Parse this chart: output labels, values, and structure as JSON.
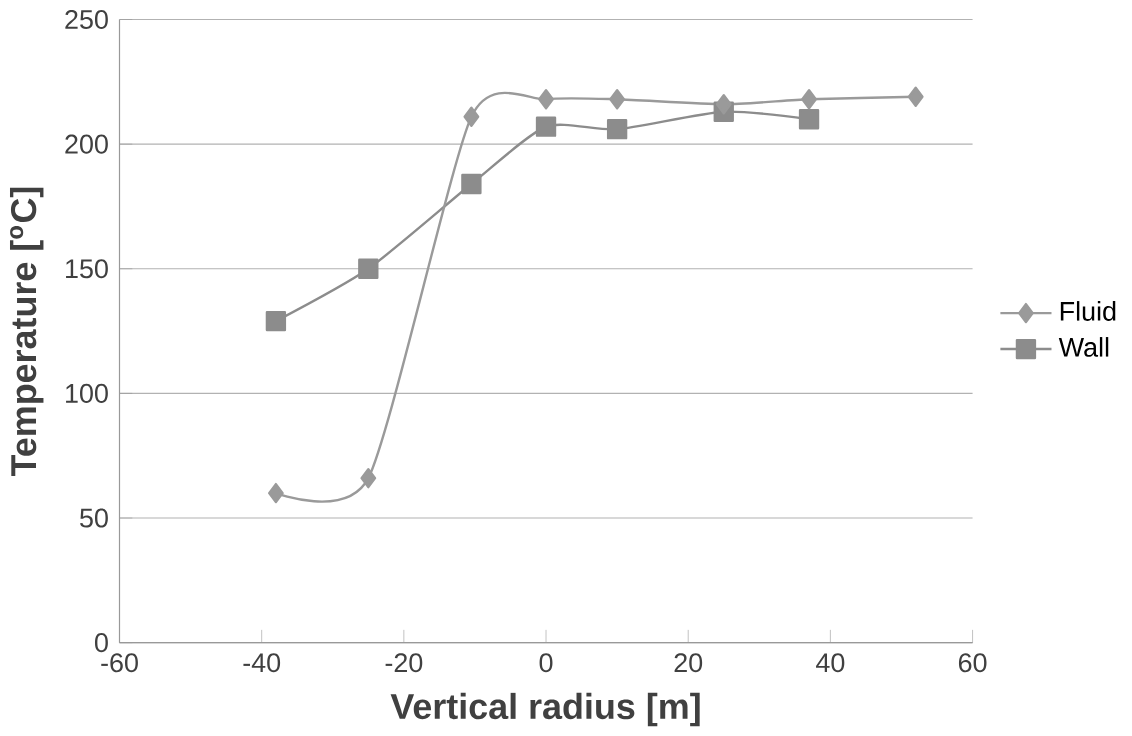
{
  "chart_data": {
    "type": "line",
    "xlabel": "Vertical radius [m]",
    "ylabel": "Temperature [$^{o}$C]",
    "xlim": [
      -60,
      60
    ],
    "xticks": [
      -60,
      -40,
      -20,
      0,
      20,
      40,
      60
    ],
    "ylim": [
      0,
      250
    ],
    "yticks": [
      0,
      50,
      100,
      150,
      200,
      250
    ],
    "grid": "y",
    "legend": "right",
    "series": [
      {
        "name": "Fluid",
        "color": "#9a9a9a",
        "marker": "diamond",
        "x": [
          -38,
          -25,
          -10.5,
          0,
          10,
          25,
          37,
          52
        ],
        "values": [
          60,
          66,
          211,
          218,
          218,
          216,
          218,
          219
        ]
      },
      {
        "name": "Wall",
        "color": "#8c8c8c",
        "marker": "square",
        "x": [
          -38,
          -25,
          -10.5,
          0,
          10,
          25,
          37
        ],
        "values": [
          129,
          150,
          184,
          207,
          206,
          213,
          210
        ]
      }
    ]
  }
}
